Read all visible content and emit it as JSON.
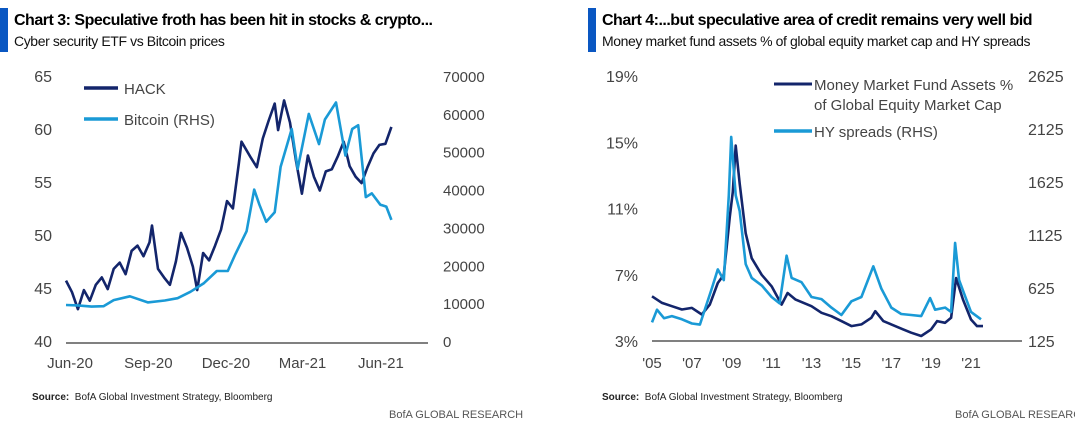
{
  "chart_data": [
    {
      "type": "line",
      "title": "Chart 3: Speculative froth has been hit in stocks & crypto...",
      "subtitle": "Cyber security ETF vs Bitcoin prices",
      "source_label": "Source:",
      "source": "BofA Global Investment Strategy, Bloomberg",
      "brand": "BofA GLOBAL RESEARCH",
      "x_ticks": [
        {
          "label": "Jun-20",
          "date": "2020-06-01"
        },
        {
          "label": "Sep-20",
          "date": "2020-09-01"
        },
        {
          "label": "Dec-20",
          "date": "2020-12-01"
        },
        {
          "label": "Mar-21",
          "date": "2021-03-01"
        },
        {
          "label": "Jun-21",
          "date": "2021-06-01"
        }
      ],
      "xlim": [
        "2020-06-01",
        "2021-07-31"
      ],
      "ylim_left": [
        40,
        65
      ],
      "yticks_left": [
        40,
        45,
        50,
        55,
        60,
        65
      ],
      "ylim_right": [
        0,
        70000
      ],
      "yticks_right": [
        0,
        10000,
        20000,
        30000,
        40000,
        50000,
        60000,
        70000
      ],
      "legend_position": "top-left",
      "grid": false,
      "series": [
        {
          "name": "HACK",
          "axis": "left",
          "color": "#13256b",
          "points": [
            [
              "2020-06-01",
              45.7
            ],
            [
              "2020-06-08",
              44.6
            ],
            [
              "2020-06-15",
              43.0
            ],
            [
              "2020-06-22",
              44.8
            ],
            [
              "2020-06-29",
              43.8
            ],
            [
              "2020-07-06",
              45.3
            ],
            [
              "2020-07-13",
              46.0
            ],
            [
              "2020-07-20",
              44.9
            ],
            [
              "2020-07-27",
              46.8
            ],
            [
              "2020-08-03",
              47.4
            ],
            [
              "2020-08-10",
              46.3
            ],
            [
              "2020-08-17",
              48.5
            ],
            [
              "2020-08-24",
              49.0
            ],
            [
              "2020-08-31",
              48.0
            ],
            [
              "2020-09-07",
              49.3
            ],
            [
              "2020-09-10",
              50.9
            ],
            [
              "2020-09-17",
              46.8
            ],
            [
              "2020-09-24",
              46.0
            ],
            [
              "2020-10-01",
              45.3
            ],
            [
              "2020-10-08",
              47.5
            ],
            [
              "2020-10-14",
              50.2
            ],
            [
              "2020-10-21",
              48.8
            ],
            [
              "2020-10-28",
              47.0
            ],
            [
              "2020-11-02",
              44.8
            ],
            [
              "2020-11-09",
              48.3
            ],
            [
              "2020-11-16",
              47.6
            ],
            [
              "2020-11-23",
              49.0
            ],
            [
              "2020-11-30",
              50.5
            ],
            [
              "2020-12-07",
              53.2
            ],
            [
              "2020-12-14",
              52.5
            ],
            [
              "2020-12-21",
              56.8
            ],
            [
              "2020-12-24",
              58.8
            ],
            [
              "2021-01-04",
              57.3
            ],
            [
              "2021-01-11",
              56.4
            ],
            [
              "2021-01-18",
              59.1
            ],
            [
              "2021-01-25",
              60.8
            ],
            [
              "2021-02-01",
              62.4
            ],
            [
              "2021-02-05",
              59.9
            ],
            [
              "2021-02-12",
              62.7
            ],
            [
              "2021-02-19",
              60.6
            ],
            [
              "2021-02-26",
              57.0
            ],
            [
              "2021-03-05",
              53.9
            ],
            [
              "2021-03-12",
              57.5
            ],
            [
              "2021-03-19",
              55.5
            ],
            [
              "2021-03-26",
              54.2
            ],
            [
              "2021-04-02",
              56.0
            ],
            [
              "2021-04-09",
              56.2
            ],
            [
              "2021-04-16",
              57.4
            ],
            [
              "2021-04-23",
              58.8
            ],
            [
              "2021-04-30",
              56.5
            ],
            [
              "2021-05-07",
              55.5
            ],
            [
              "2021-05-14",
              54.9
            ],
            [
              "2021-05-21",
              56.4
            ],
            [
              "2021-05-28",
              57.7
            ],
            [
              "2021-06-04",
              58.5
            ],
            [
              "2021-06-11",
              58.6
            ],
            [
              "2021-06-18",
              60.2
            ]
          ]
        },
        {
          "name": "Bitcoin (RHS)",
          "axis": "right",
          "color": "#1a9ad6",
          "points": [
            [
              "2020-06-01",
              9500
            ],
            [
              "2020-06-15",
              9400
            ],
            [
              "2020-07-01",
              9100
            ],
            [
              "2020-07-15",
              9200
            ],
            [
              "2020-07-27",
              10800
            ],
            [
              "2020-08-15",
              11800
            ],
            [
              "2020-09-05",
              10200
            ],
            [
              "2020-09-25",
              10700
            ],
            [
              "2020-10-10",
              11300
            ],
            [
              "2020-10-25",
              13000
            ],
            [
              "2020-11-10",
              15300
            ],
            [
              "2020-11-25",
              18500
            ],
            [
              "2020-12-08",
              18500
            ],
            [
              "2020-12-17",
              23000
            ],
            [
              "2020-12-30",
              29000
            ],
            [
              "2021-01-08",
              40000
            ],
            [
              "2021-01-14",
              36000
            ],
            [
              "2021-01-22",
              31500
            ],
            [
              "2021-02-01",
              34000
            ],
            [
              "2021-02-08",
              46000
            ],
            [
              "2021-02-21",
              56000
            ],
            [
              "2021-02-28",
              45500
            ],
            [
              "2021-03-13",
              60000
            ],
            [
              "2021-03-25",
              52000
            ],
            [
              "2021-04-01",
              58500
            ],
            [
              "2021-04-14",
              63000
            ],
            [
              "2021-04-25",
              49000
            ],
            [
              "2021-05-03",
              56000
            ],
            [
              "2021-05-10",
              57000
            ],
            [
              "2021-05-19",
              38000
            ],
            [
              "2021-05-26",
              39000
            ],
            [
              "2021-06-05",
              36000
            ],
            [
              "2021-06-12",
              35500
            ],
            [
              "2021-06-18",
              32000
            ]
          ]
        }
      ]
    },
    {
      "type": "line",
      "title": "Chart 4:...but speculative area of credit remains very well bid",
      "subtitle": "Money market fund assets % of global equity market cap and HY spreads",
      "source_label": "Source:",
      "source": "BofA Global Investment Strategy, Bloomberg",
      "brand": "BofA GLOBAL RESEARCH",
      "x_ticks": [
        "'05",
        "'07",
        "'09",
        "'11",
        "'13",
        "'15",
        "'17",
        "'19",
        "'21"
      ],
      "xlim": [
        2005,
        2023
      ],
      "ylim_left": [
        3,
        19
      ],
      "yticks_left": [
        "3%",
        "7%",
        "11%",
        "15%",
        "19%"
      ],
      "ylim_right": [
        125,
        2625
      ],
      "yticks_right": [
        125,
        625,
        1125,
        1625,
        2125,
        2625
      ],
      "legend_position": "top-right",
      "grid": false,
      "series": [
        {
          "name": "Money Market Fund Assets % of Global Equity Market Cap",
          "axis": "left",
          "color": "#13256b",
          "points": [
            [
              2005.0,
              5.7
            ],
            [
              2005.5,
              5.3
            ],
            [
              2006.0,
              5.1
            ],
            [
              2006.5,
              4.9
            ],
            [
              2007.0,
              5.0
            ],
            [
              2007.5,
              4.6
            ],
            [
              2007.9,
              5.2
            ],
            [
              2008.3,
              6.5
            ],
            [
              2008.6,
              7.0
            ],
            [
              2008.9,
              10.5
            ],
            [
              2009.05,
              12.0
            ],
            [
              2009.2,
              14.8
            ],
            [
              2009.4,
              12.5
            ],
            [
              2009.7,
              9.5
            ],
            [
              2010.0,
              8.0
            ],
            [
              2010.5,
              7.0
            ],
            [
              2011.0,
              6.3
            ],
            [
              2011.5,
              5.2
            ],
            [
              2011.8,
              5.9
            ],
            [
              2012.2,
              5.5
            ],
            [
              2013.0,
              5.1
            ],
            [
              2013.5,
              4.7
            ],
            [
              2014.0,
              4.5
            ],
            [
              2014.5,
              4.2
            ],
            [
              2015.0,
              3.9
            ],
            [
              2015.5,
              4.0
            ],
            [
              2016.0,
              4.4
            ],
            [
              2016.2,
              4.8
            ],
            [
              2016.6,
              4.2
            ],
            [
              2017.0,
              4.0
            ],
            [
              2017.6,
              3.7
            ],
            [
              2018.0,
              3.5
            ],
            [
              2018.5,
              3.3
            ],
            [
              2019.0,
              3.7
            ],
            [
              2019.3,
              4.2
            ],
            [
              2019.7,
              4.1
            ],
            [
              2020.0,
              4.4
            ],
            [
              2020.25,
              6.8
            ],
            [
              2020.6,
              5.5
            ],
            [
              2021.0,
              4.3
            ],
            [
              2021.3,
              3.9
            ],
            [
              2021.6,
              3.9
            ]
          ]
        },
        {
          "name": "HY spreads (RHS)",
          "axis": "right",
          "color": "#1a9ad6",
          "points": [
            [
              2005.0,
              300
            ],
            [
              2005.25,
              420
            ],
            [
              2005.6,
              340
            ],
            [
              2006.0,
              360
            ],
            [
              2006.5,
              330
            ],
            [
              2007.0,
              290
            ],
            [
              2007.4,
              280
            ],
            [
              2007.7,
              450
            ],
            [
              2008.0,
              620
            ],
            [
              2008.3,
              800
            ],
            [
              2008.6,
              700
            ],
            [
              2008.85,
              1500
            ],
            [
              2008.97,
              2050
            ],
            [
              2009.2,
              1500
            ],
            [
              2009.4,
              1350
            ],
            [
              2009.7,
              850
            ],
            [
              2010.0,
              720
            ],
            [
              2010.5,
              650
            ],
            [
              2011.0,
              540
            ],
            [
              2011.4,
              480
            ],
            [
              2011.75,
              930
            ],
            [
              2012.0,
              720
            ],
            [
              2012.5,
              680
            ],
            [
              2013.0,
              540
            ],
            [
              2013.5,
              520
            ],
            [
              2014.0,
              440
            ],
            [
              2014.5,
              370
            ],
            [
              2015.0,
              500
            ],
            [
              2015.5,
              540
            ],
            [
              2016.1,
              830
            ],
            [
              2016.5,
              620
            ],
            [
              2017.0,
              440
            ],
            [
              2017.5,
              380
            ],
            [
              2018.0,
              370
            ],
            [
              2018.5,
              360
            ],
            [
              2018.95,
              530
            ],
            [
              2019.2,
              420
            ],
            [
              2019.7,
              440
            ],
            [
              2020.0,
              400
            ],
            [
              2020.2,
              1050
            ],
            [
              2020.4,
              700
            ],
            [
              2020.8,
              500
            ],
            [
              2021.0,
              400
            ],
            [
              2021.5,
              330
            ]
          ]
        }
      ]
    }
  ]
}
